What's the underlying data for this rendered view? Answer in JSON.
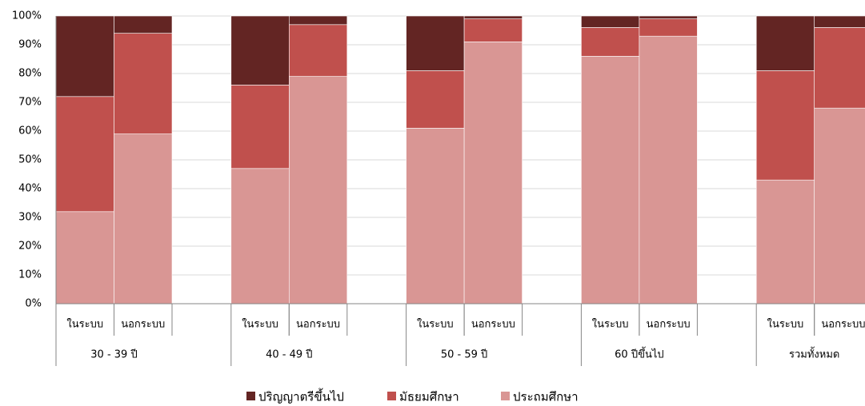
{
  "chart_data": {
    "type": "stacked_bar",
    "groups": [
      "30 - 39 ปี",
      "40 - 49 ปี",
      "50 - 59 ปี",
      "60 ปีขึ้นไป",
      "รวมทั้งหมด"
    ],
    "categories": [
      "ในระบบ",
      "นอกระบบ",
      "ในระบบ",
      "นอกระบบ",
      "ในระบบ",
      "นอกระบบ",
      "ในระบบ",
      "นอกระบบ",
      "ในระบบ",
      "นอกระบบ"
    ],
    "series": [
      {
        "name": "ประถมศึกษา",
        "color": "#d99694",
        "values": [
          32,
          59,
          47,
          79,
          61,
          91,
          86,
          93,
          43,
          68
        ]
      },
      {
        "name": "มัธยมศึกษา",
        "color": "#c0504d",
        "values": [
          40,
          35,
          29,
          18,
          20,
          8,
          10,
          6,
          38,
          28
        ]
      },
      {
        "name": "ปริญญาตรีขึ้นไป",
        "color": "#632523",
        "values": [
          28,
          6,
          24,
          3,
          19,
          1,
          4,
          1,
          19,
          4
        ]
      }
    ],
    "ylim": [
      0,
      100
    ],
    "yticks": [
      {
        "value": 0,
        "label": "0%"
      },
      {
        "value": 10,
        "label": "10%"
      },
      {
        "value": 20,
        "label": "20%"
      },
      {
        "value": 30,
        "label": "30%"
      },
      {
        "value": 40,
        "label": "40%"
      },
      {
        "value": 50,
        "label": "50%"
      },
      {
        "value": 60,
        "label": "60%"
      },
      {
        "value": 70,
        "label": "70%"
      },
      {
        "value": 80,
        "label": "80%"
      },
      {
        "value": 90,
        "label": "90%"
      },
      {
        "value": 100,
        "label": "100%"
      }
    ],
    "grid": true,
    "legend": "bottom"
  }
}
